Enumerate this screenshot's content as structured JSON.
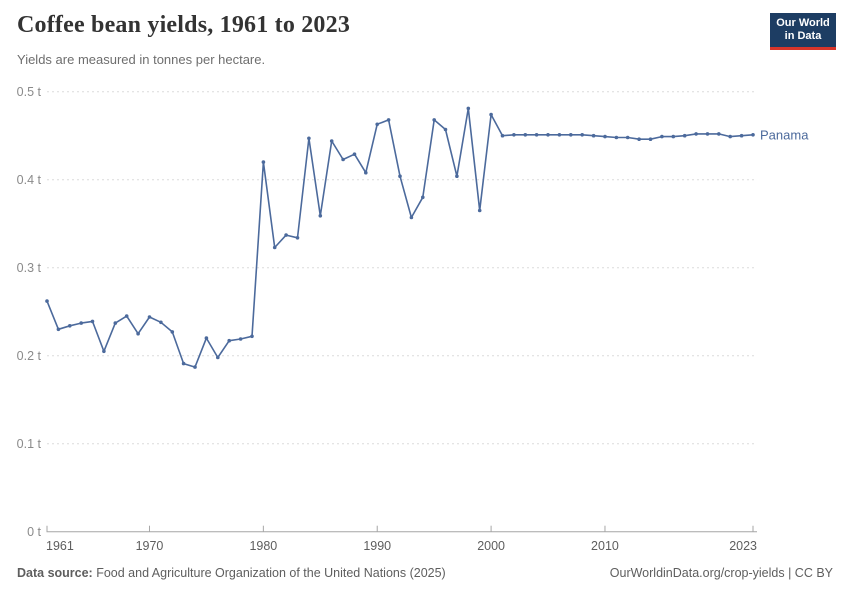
{
  "header": {
    "title": "Coffee bean yields, 1961 to 2023",
    "subtitle": "Yields are measured in tonnes per hectare.",
    "logo_line1": "Our World",
    "logo_line2": "in Data"
  },
  "footer": {
    "source_label": "Data source:",
    "source_text": " Food and Agriculture Organization of the United Nations (2025)",
    "credit": "OurWorldinData.org/crop-yields | CC BY"
  },
  "colors": {
    "series_line": "#4C6A9C",
    "entity_label": "#4C6A9C",
    "gridline": "#dcdcdc",
    "axis_line": "#a6a6a6",
    "x_tick_label": "#5e5e5e",
    "y_tick_label": "#8a8a8a",
    "logo_bg": "#1d3d63",
    "logo_accent": "#d8352a"
  },
  "chart_data": {
    "type": "line",
    "title": "Coffee bean yields, 1961 to 2023",
    "subtitle": "Yields are measured in tonnes per hectare.",
    "unit": "t",
    "xlabel": "",
    "ylabel": "tonnes per hectare",
    "xlim": [
      1961,
      2023
    ],
    "ylim": [
      0,
      0.5
    ],
    "grid": "horizontal-dashed",
    "legend": "end-of-line-label",
    "x_ticks": [
      1961,
      1970,
      1980,
      1990,
      2000,
      2010,
      2023
    ],
    "y_ticks": [
      0,
      0.1,
      0.2,
      0.3,
      0.4,
      0.5
    ],
    "y_tick_suffix": " t",
    "x": [
      1961,
      1962,
      1963,
      1964,
      1965,
      1966,
      1967,
      1968,
      1969,
      1970,
      1971,
      1972,
      1973,
      1974,
      1975,
      1976,
      1977,
      1978,
      1979,
      1980,
      1981,
      1982,
      1983,
      1984,
      1985,
      1986,
      1987,
      1988,
      1989,
      1990,
      1991,
      1992,
      1993,
      1994,
      1995,
      1996,
      1997,
      1998,
      1999,
      2000,
      2001,
      2002,
      2003,
      2004,
      2005,
      2006,
      2007,
      2008,
      2009,
      2010,
      2011,
      2012,
      2013,
      2014,
      2015,
      2016,
      2017,
      2018,
      2019,
      2020,
      2021,
      2022,
      2023
    ],
    "series": [
      {
        "name": "Panama",
        "color": "#4C6A9C",
        "values": [
          0.262,
          0.23,
          0.234,
          0.237,
          0.239,
          0.205,
          0.237,
          0.245,
          0.225,
          0.244,
          0.238,
          0.227,
          0.191,
          0.187,
          0.22,
          0.198,
          0.217,
          0.219,
          0.222,
          0.42,
          0.323,
          0.337,
          0.334,
          0.447,
          0.359,
          0.444,
          0.423,
          0.429,
          0.408,
          0.463,
          0.468,
          0.404,
          0.357,
          0.38,
          0.468,
          0.457,
          0.404,
          0.481,
          0.365,
          0.474,
          0.45,
          0.451,
          0.451,
          0.451,
          0.451,
          0.451,
          0.451,
          0.451,
          0.45,
          0.449,
          0.448,
          0.448,
          0.446,
          0.446,
          0.449,
          0.449,
          0.45,
          0.452,
          0.452,
          0.452,
          0.449,
          0.45,
          0.451
        ]
      }
    ]
  }
}
